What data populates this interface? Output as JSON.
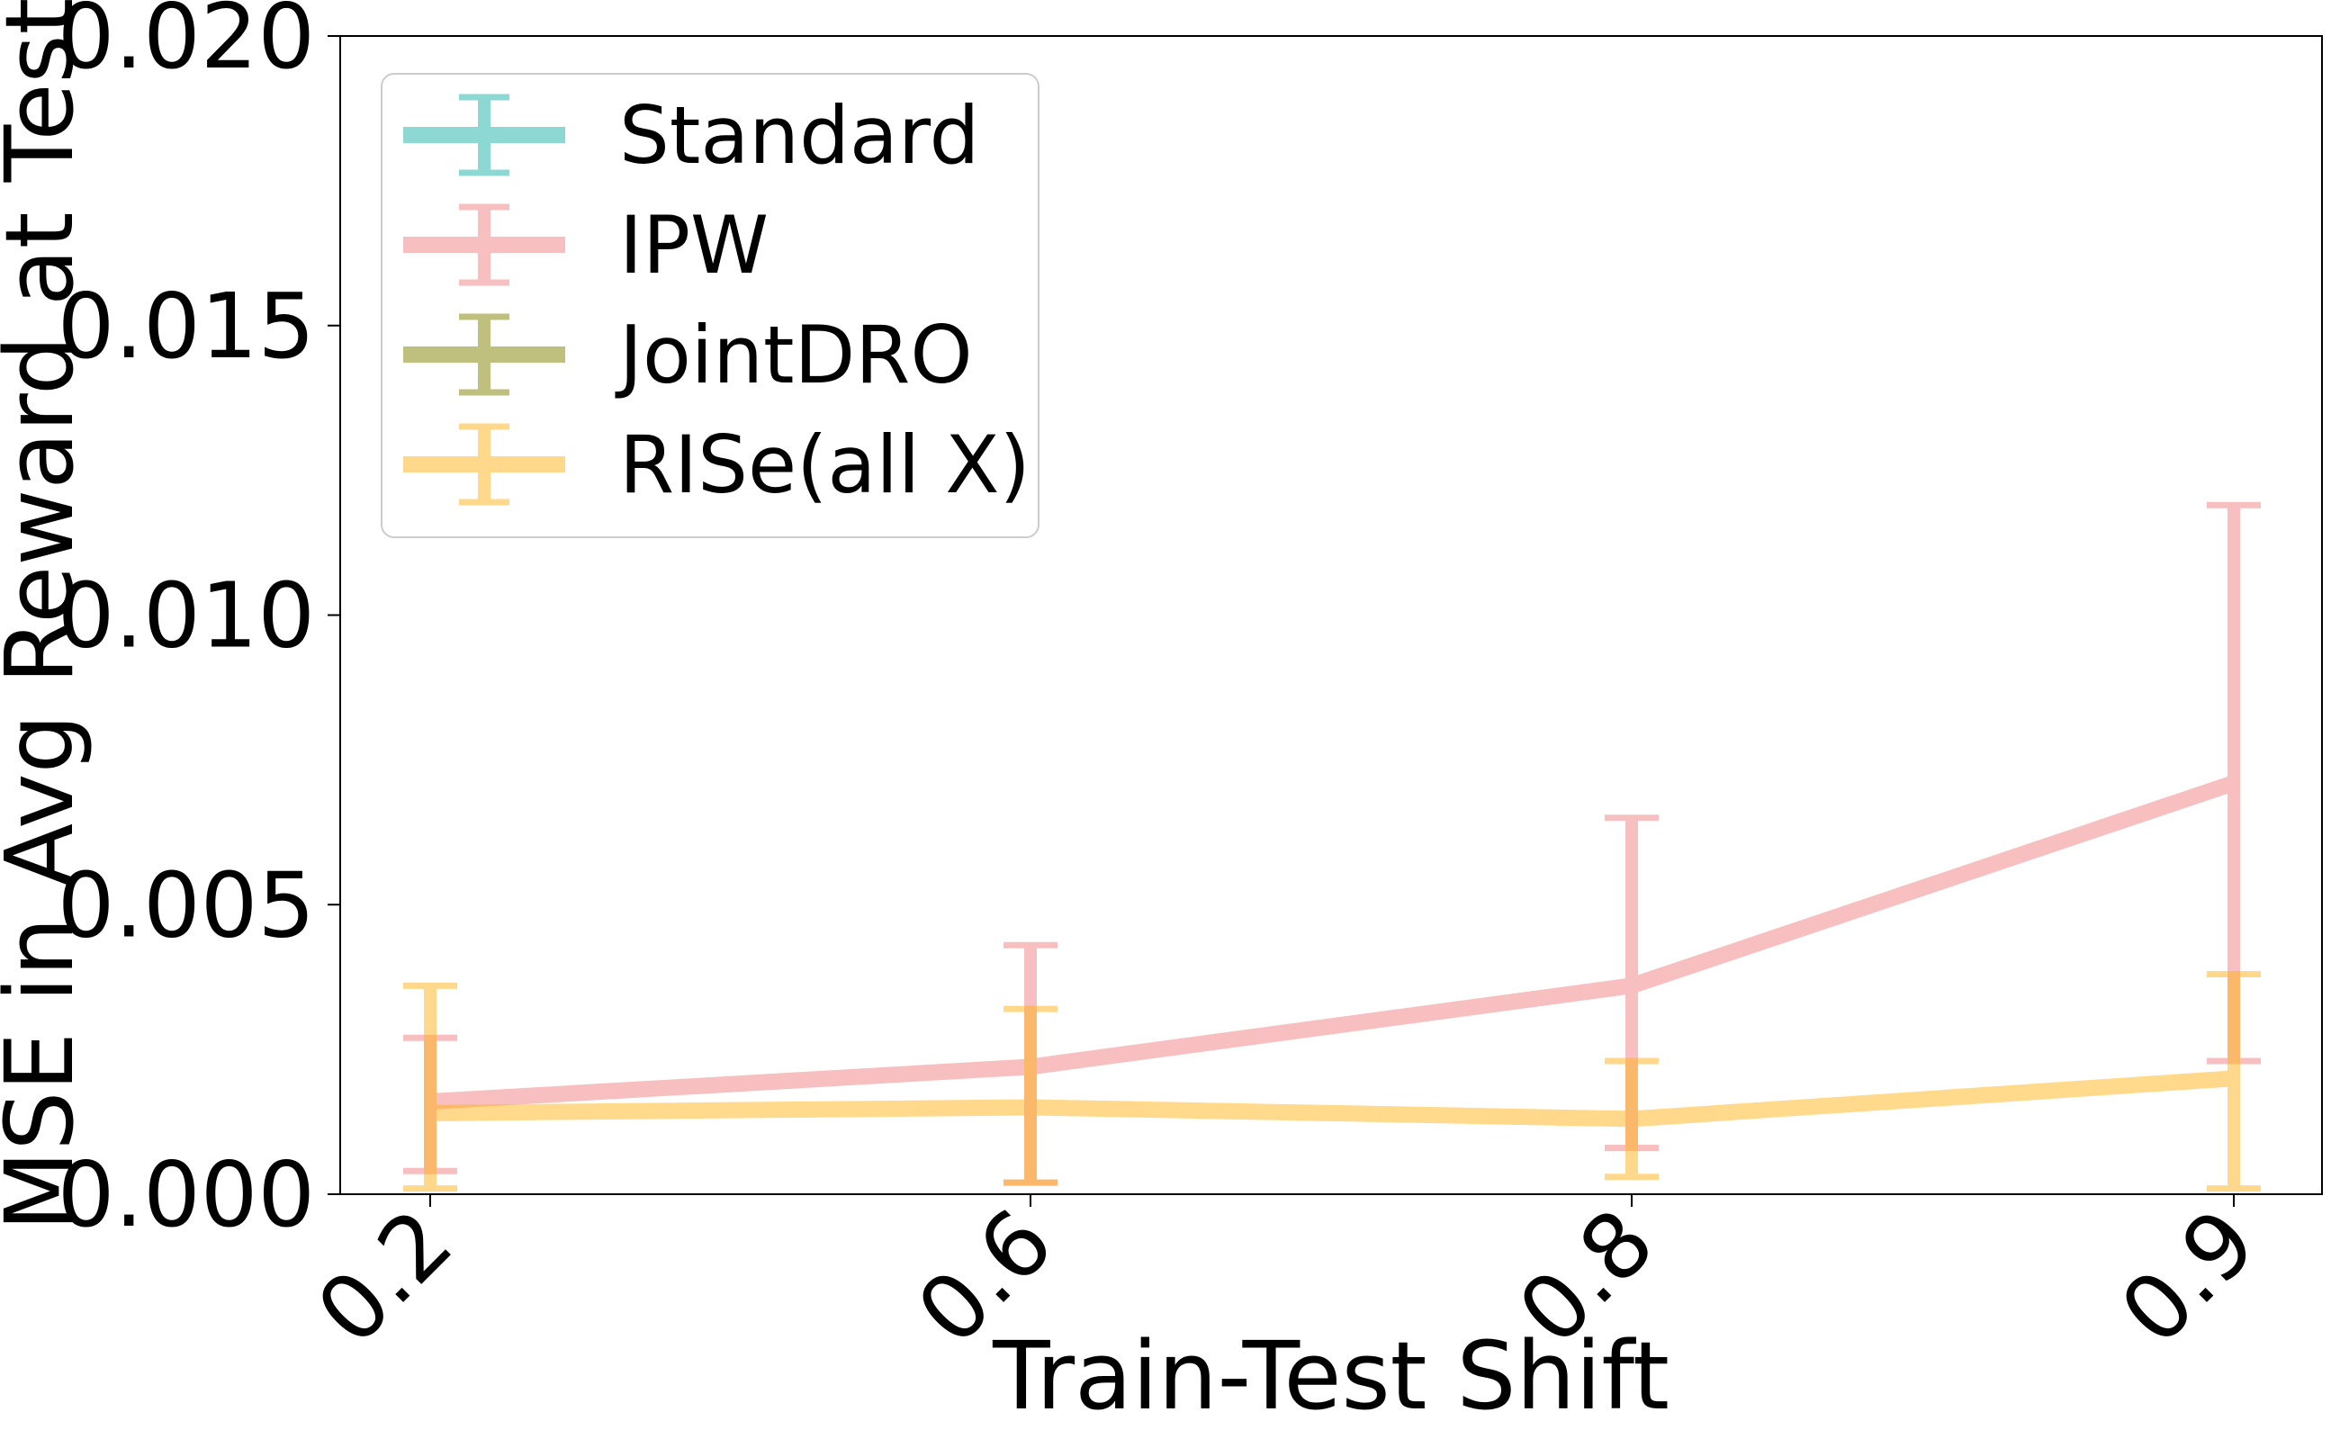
{
  "chart_data": {
    "type": "line",
    "xlabel": "Train-Test Shift",
    "ylabel": "MSE in Avg Reward at Test",
    "categories": [
      "0.2",
      "0.6",
      "0.8",
      "0.9"
    ],
    "ylim": [
      0.0,
      0.02
    ],
    "yticks": [
      "0.000",
      "0.005",
      "0.010",
      "0.015",
      "0.020"
    ],
    "grid": false,
    "legend_position": "top-left",
    "series": [
      {
        "name": "Standard",
        "color": "#20b2aa",
        "values": [
          null,
          null,
          null,
          null
        ],
        "lower": [
          null,
          null,
          null,
          null
        ],
        "upper": [
          null,
          null,
          null,
          null
        ]
      },
      {
        "name": "IPW",
        "color": "#f08080",
        "values": [
          0.0016,
          0.0022,
          0.0036,
          0.0071
        ],
        "lower": [
          0.0004,
          0.0002,
          0.0008,
          0.0023
        ],
        "upper": [
          0.0027,
          0.0043,
          0.0065,
          0.0119
        ]
      },
      {
        "name": "JointDRO",
        "color": "#808000",
        "values": [
          null,
          null,
          null,
          null
        ],
        "lower": [
          null,
          null,
          null,
          null
        ],
        "upper": [
          null,
          null,
          null,
          null
        ]
      },
      {
        "name": "RISe(all X)",
        "color": "#ffb31a",
        "values": [
          0.0014,
          0.0015,
          0.0013,
          0.002
        ],
        "lower": [
          0.0001,
          0.0002,
          0.0003,
          0.0001
        ],
        "upper": [
          0.0036,
          0.0032,
          0.0023,
          0.0038
        ]
      }
    ]
  }
}
